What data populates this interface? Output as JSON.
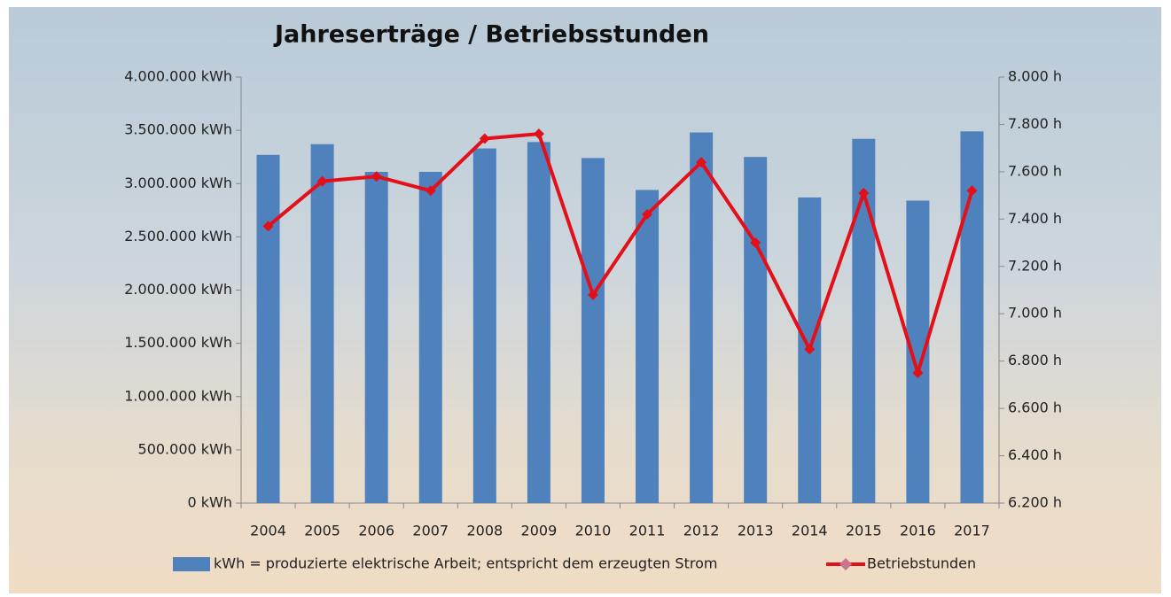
{
  "chart_data": {
    "type": "bar",
    "title": "Jahreserträge / Betriebsstunden",
    "categories": [
      "2004",
      "2005",
      "2006",
      "2007",
      "2008",
      "2009",
      "2010",
      "2011",
      "2012",
      "2013",
      "2014",
      "2015",
      "2016",
      "2017"
    ],
    "series": [
      {
        "name": "kWh = produzierte elektrische Arbeit; entspricht dem erzeugten Strom",
        "type": "bar",
        "color": "#4f81bd",
        "values": [
          3270000,
          3370000,
          3110000,
          3110000,
          3330000,
          3390000,
          3240000,
          2940000,
          3480000,
          3250000,
          2870000,
          3420000,
          2840000,
          3490000
        ]
      },
      {
        "name": "Betriebstunden",
        "type": "line",
        "axis": "y2",
        "color": "#e3101a",
        "values": [
          7370,
          7560,
          7580,
          7520,
          7740,
          7760,
          7080,
          7420,
          7640,
          7300,
          6850,
          7510,
          6750,
          7520
        ]
      }
    ],
    "ylim": [
      0,
      4000000
    ],
    "yticks": [
      {
        "value": 0,
        "label": "0 kWh"
      },
      {
        "value": 500000,
        "label": "500.000 kWh"
      },
      {
        "value": 1000000,
        "label": "1.000.000 kWh"
      },
      {
        "value": 1500000,
        "label": "1.500.000 kWh"
      },
      {
        "value": 2000000,
        "label": "2.000.000 kWh"
      },
      {
        "value": 2500000,
        "label": "2.500.000 kWh"
      },
      {
        "value": 3000000,
        "label": "3.000.000 kWh"
      },
      {
        "value": 3500000,
        "label": "3.500.000 kWh"
      },
      {
        "value": 4000000,
        "label": "4.000.000 kWh"
      }
    ],
    "y2lim": [
      6200,
      8000
    ],
    "y2ticks": [
      {
        "value": 6200,
        "label": "6.200 h"
      },
      {
        "value": 6400,
        "label": "6.400 h"
      },
      {
        "value": 6600,
        "label": "6.600 h"
      },
      {
        "value": 6800,
        "label": "6.800 h"
      },
      {
        "value": 7000,
        "label": "7.000 h"
      },
      {
        "value": 7200,
        "label": "7.200 h"
      },
      {
        "value": 7400,
        "label": "7.400 h"
      },
      {
        "value": 7600,
        "label": "7.600 h"
      },
      {
        "value": 7800,
        "label": "7.800 h"
      },
      {
        "value": 8000,
        "label": "8.000 h"
      }
    ],
    "grid": false
  }
}
